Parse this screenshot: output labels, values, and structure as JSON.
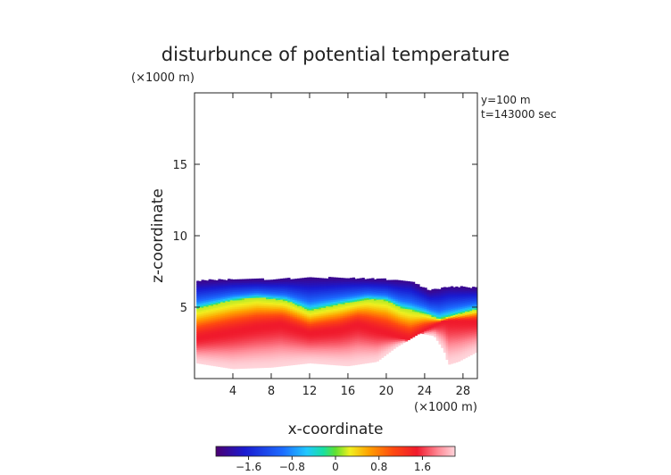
{
  "chart_data": {
    "type": "heatmap",
    "title": "disturbunce of potential temperature",
    "axis_unit_top": "(×1000 m)",
    "axis_unit_right": "(×1000 m)",
    "xlabel": "x-coordinate",
    "ylabel": "z-coordinate",
    "annotations": [
      "y=100 m",
      "t=143000 sec"
    ],
    "xlim": [
      0,
      29.5
    ],
    "ylim": [
      0,
      20
    ],
    "x_ticks": [
      4,
      8,
      12,
      16,
      20,
      24,
      28
    ],
    "y_ticks": [
      5,
      10,
      15
    ],
    "colorbar": {
      "range": [
        -2.2,
        2.2
      ],
      "ticks": [
        -1.6,
        -0.8,
        0,
        0.8,
        1.6
      ],
      "tick_labels": [
        "−1.6",
        "−0.8",
        "0",
        "0.8",
        "1.6"
      ]
    },
    "field_top_z": [
      [
        0.2,
        6.8
      ],
      [
        4,
        6.9
      ],
      [
        8,
        6.9
      ],
      [
        12,
        7.0
      ],
      [
        16,
        7.0
      ],
      [
        20,
        6.9
      ],
      [
        22.5,
        6.8
      ],
      [
        24.5,
        6.1
      ],
      [
        26.5,
        6.4
      ],
      [
        29.5,
        6.3
      ]
    ],
    "field_bottom_z": [
      [
        0.2,
        1.1
      ],
      [
        4,
        0.7
      ],
      [
        8,
        0.8
      ],
      [
        12,
        1.1
      ],
      [
        16,
        0.9
      ],
      [
        19,
        1.2
      ],
      [
        21,
        2.2
      ],
      [
        23.5,
        3.2
      ],
      [
        25,
        3.0
      ],
      [
        26,
        2.0
      ],
      [
        26.5,
        1.0
      ],
      [
        27.5,
        1.2
      ],
      [
        29.5,
        1.9
      ]
    ],
    "warm_center_z": [
      [
        0,
        2.8
      ],
      [
        6.5,
        3.6
      ],
      [
        9,
        3.8
      ],
      [
        12,
        3.2
      ],
      [
        15,
        3.4
      ],
      [
        17,
        3.8
      ],
      [
        20,
        3.2
      ],
      [
        22.5,
        2.7
      ],
      [
        24,
        3.4
      ],
      [
        26,
        4.1
      ],
      [
        29.5,
        4.0
      ]
    ],
    "warm_top_z": [
      [
        0,
        4.9
      ],
      [
        4,
        5.5
      ],
      [
        6.5,
        5.7
      ],
      [
        9.5,
        5.5
      ],
      [
        12,
        4.8
      ],
      [
        15,
        5.2
      ],
      [
        18,
        5.6
      ],
      [
        20,
        5.5
      ],
      [
        21.5,
        5.0
      ],
      [
        24,
        4.6
      ],
      [
        25.5,
        4.2
      ],
      [
        29.5,
        4.9
      ]
    ]
  }
}
